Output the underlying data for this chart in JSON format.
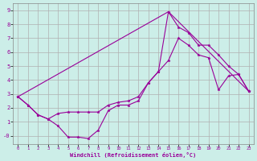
{
  "xlabel": "Windchill (Refroidissement éolien,°C)",
  "background_color": "#cceee8",
  "grid_color": "#b0b0b0",
  "line_color": "#990099",
  "xlim": [
    -0.5,
    23.5
  ],
  "ylim": [
    -0.6,
    9.5
  ],
  "xticks": [
    0,
    1,
    2,
    3,
    4,
    5,
    6,
    7,
    8,
    9,
    10,
    11,
    12,
    13,
    14,
    15,
    16,
    17,
    18,
    19,
    20,
    21,
    22,
    23
  ],
  "yticks": [
    0,
    1,
    2,
    3,
    4,
    5,
    6,
    7,
    8,
    9
  ],
  "ytick_labels": [
    "-0",
    "1",
    "2",
    "3",
    "4",
    "5",
    "6",
    "7",
    "8",
    "9"
  ],
  "line1_x": [
    0,
    1,
    2,
    3,
    4,
    5,
    6,
    7,
    8,
    9,
    10,
    11,
    12,
    13,
    14,
    15,
    16,
    17,
    18,
    19,
    20,
    21,
    22,
    23
  ],
  "line1_y": [
    2.8,
    2.2,
    1.5,
    1.2,
    0.7,
    -0.1,
    -0.1,
    -0.2,
    0.4,
    1.8,
    2.2,
    2.2,
    2.5,
    3.8,
    4.6,
    5.4,
    7.0,
    6.5,
    5.8,
    5.6,
    3.3,
    4.3,
    4.4,
    3.2
  ],
  "line2_x": [
    0,
    1,
    2,
    3,
    4,
    5,
    6,
    7,
    8,
    9,
    10,
    11,
    12,
    13,
    14,
    15,
    16,
    17,
    18,
    19,
    20,
    21,
    22,
    23
  ],
  "line2_y": [
    2.8,
    2.2,
    1.5,
    1.2,
    1.6,
    1.7,
    1.7,
    1.7,
    1.7,
    2.2,
    2.4,
    2.5,
    2.8,
    3.8,
    4.6,
    8.9,
    7.8,
    7.4,
    6.5,
    6.5,
    5.8,
    5.0,
    4.4,
    3.2
  ],
  "line3_x": [
    0,
    15,
    23
  ],
  "line3_y": [
    2.8,
    8.9,
    3.2
  ]
}
